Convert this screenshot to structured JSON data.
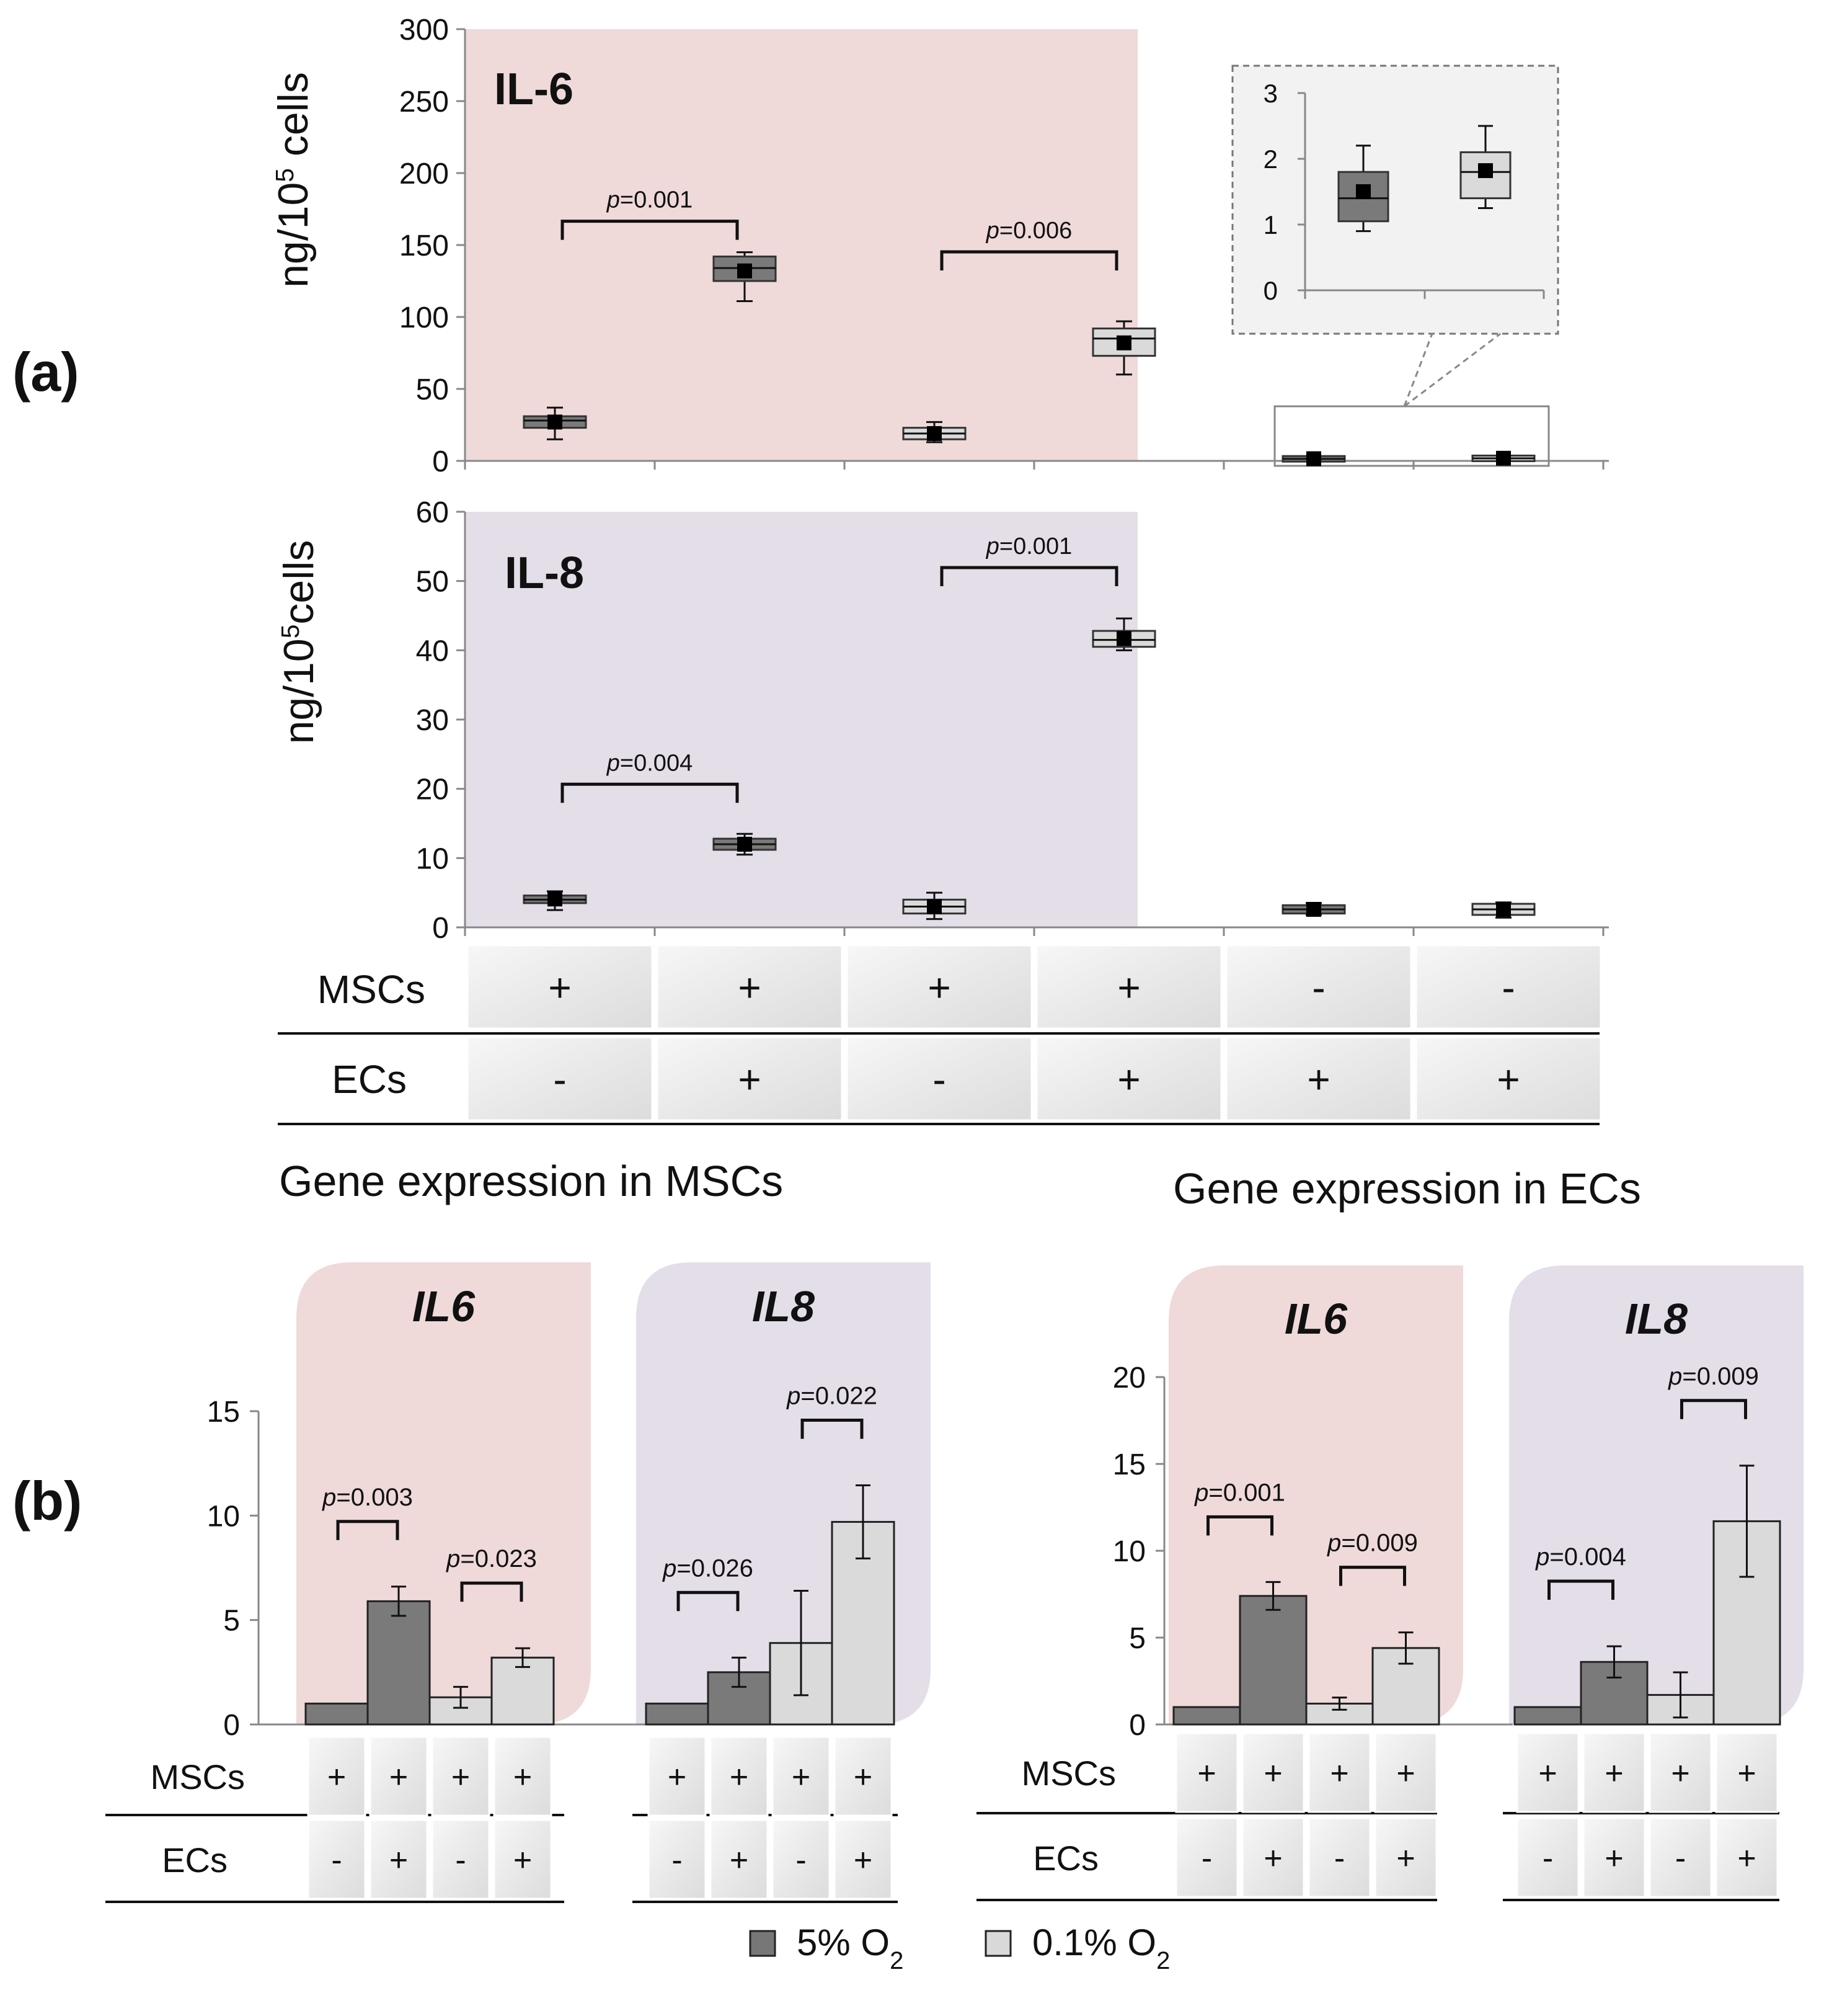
{
  "panel_labels": {
    "a": "(a)",
    "b": "(b)"
  },
  "row_labels": {
    "mscs": "MSCs",
    "ecs": "ECs"
  },
  "section_titles": {
    "mscs": "Gene expression in MSCs",
    "ecs": "Gene expression in ECs"
  },
  "legend": {
    "items": [
      {
        "label": "5% O",
        "sub": "2",
        "color": "#777777"
      },
      {
        "label": "0.1% O",
        "sub": "2",
        "color": "#d9d9d9"
      }
    ]
  },
  "colors": {
    "il6_bg": "#efd9d9",
    "il8_bg": "#e4dee9",
    "dark": "#7a7a7a",
    "light": "#dadada",
    "mark": "#000000"
  },
  "chart_data": [
    {
      "id": "a-il6",
      "type": "box",
      "title": "IL-6",
      "ylabel": "ng/10",
      "ylabel_sup": "5",
      "ylabel_tail": " cells",
      "ylim": [
        0,
        300
      ],
      "yticks": [
        0,
        50,
        100,
        150,
        200,
        250,
        300
      ],
      "groups": [
        {
          "mscs": "+",
          "ecs": "-",
          "shade": "dark",
          "min": 15,
          "q1": 23,
          "median": 28,
          "q3": 31,
          "max": 37,
          "mean": 27
        },
        {
          "mscs": "+",
          "ecs": "+",
          "shade": "dark",
          "min": 111,
          "q1": 125,
          "median": 134,
          "q3": 142,
          "max": 145,
          "mean": 132
        },
        {
          "mscs": "+",
          "ecs": "-",
          "shade": "light",
          "min": 13,
          "q1": 15,
          "median": 19,
          "q3": 23,
          "max": 27,
          "mean": 19
        },
        {
          "mscs": "+",
          "ecs": "+",
          "shade": "light",
          "min": 60,
          "q1": 73,
          "median": 85,
          "q3": 92,
          "max": 97,
          "mean": 82
        },
        {
          "mscs": "-",
          "ecs": "+",
          "shade": "dark",
          "min": 0.9,
          "q1": 1.05,
          "median": 1.4,
          "q3": 1.8,
          "max": 2.2,
          "mean": 1.5
        },
        {
          "mscs": "-",
          "ecs": "+",
          "shade": "light",
          "min": 1.25,
          "q1": 1.4,
          "median": 1.8,
          "q3": 2.1,
          "max": 2.5,
          "mean": 1.82
        }
      ],
      "pvalues": [
        {
          "from": 0,
          "to": 1,
          "text": "p=0.001"
        },
        {
          "from": 2,
          "to": 3,
          "text": "p=0.006"
        }
      ],
      "inset": {
        "ylim": [
          0,
          3
        ],
        "yticks": [
          0,
          1,
          2,
          3
        ],
        "groups": [
          4,
          5
        ]
      }
    },
    {
      "id": "a-il8",
      "type": "box",
      "title": "IL-8",
      "ylabel": "ng/10",
      "ylabel_sup": "5",
      "ylabel_tail": "cells",
      "ylim": [
        0,
        60
      ],
      "yticks": [
        0,
        10,
        20,
        30,
        40,
        50,
        60
      ],
      "groups": [
        {
          "mscs": "+",
          "ecs": "-",
          "shade": "dark",
          "min": 2.5,
          "q1": 3.5,
          "median": 4,
          "q3": 4.6,
          "max": 5.2,
          "mean": 4.1
        },
        {
          "mscs": "+",
          "ecs": "+",
          "shade": "dark",
          "min": 10.5,
          "q1": 11.2,
          "median": 12,
          "q3": 12.8,
          "max": 13.5,
          "mean": 12
        },
        {
          "mscs": "+",
          "ecs": "-",
          "shade": "light",
          "min": 1.2,
          "q1": 2,
          "median": 3,
          "q3": 4,
          "max": 5,
          "mean": 3
        },
        {
          "mscs": "+",
          "ecs": "+",
          "shade": "light",
          "min": 40,
          "q1": 40.5,
          "median": 41.5,
          "q3": 42.8,
          "max": 44.6,
          "mean": 41.7
        },
        {
          "mscs": "-",
          "ecs": "+",
          "shade": "dark",
          "min": 1.8,
          "q1": 2,
          "median": 2.6,
          "q3": 3.2,
          "max": 3.5,
          "mean": 2.6
        },
        {
          "mscs": "-",
          "ecs": "+",
          "shade": "light",
          "min": 1.4,
          "q1": 1.8,
          "median": 2.6,
          "q3": 3.4,
          "max": 3.6,
          "mean": 2.6
        }
      ],
      "pvalues": [
        {
          "from": 0,
          "to": 1,
          "text": "p=0.004"
        },
        {
          "from": 2,
          "to": 3,
          "text": "p=0.001"
        }
      ]
    },
    {
      "id": "b-mscs",
      "type": "bar",
      "ylim": [
        0,
        15
      ],
      "yticks": [
        0,
        5,
        10,
        15
      ],
      "panels": [
        {
          "title": "IL6",
          "bars": [
            {
              "mscs": "+",
              "ecs": "-",
              "shade": "dark",
              "value": 1,
              "err": 0
            },
            {
              "mscs": "+",
              "ecs": "+",
              "shade": "dark",
              "value": 5.9,
              "err": 0.7
            },
            {
              "mscs": "+",
              "ecs": "-",
              "shade": "light",
              "value": 1.3,
              "err": 0.5
            },
            {
              "mscs": "+",
              "ecs": "+",
              "shade": "light",
              "value": 3.2,
              "err": 0.45
            }
          ],
          "pvalues": [
            {
              "from": 0,
              "to": 1,
              "text": "p=0.003"
            },
            {
              "from": 2,
              "to": 3,
              "text": "p=0.023"
            }
          ]
        },
        {
          "title": "IL8",
          "bars": [
            {
              "mscs": "+",
              "ecs": "-",
              "shade": "dark",
              "value": 1,
              "err": 0
            },
            {
              "mscs": "+",
              "ecs": "+",
              "shade": "dark",
              "value": 2.5,
              "err": 0.7
            },
            {
              "mscs": "+",
              "ecs": "-",
              "shade": "light",
              "value": 3.9,
              "err": 2.5
            },
            {
              "mscs": "+",
              "ecs": "+",
              "shade": "light",
              "value": 9.7,
              "err": 1.75
            }
          ],
          "pvalues": [
            {
              "from": 0,
              "to": 1,
              "text": "p=0.026"
            },
            {
              "from": 2,
              "to": 3,
              "text": "p=0.022"
            }
          ]
        }
      ]
    },
    {
      "id": "b-ecs",
      "type": "bar",
      "ylim": [
        0,
        20
      ],
      "yticks": [
        0,
        5,
        10,
        15,
        20
      ],
      "panels": [
        {
          "title": "IL6",
          "bars": [
            {
              "mscs": "+",
              "ecs": "-",
              "shade": "dark",
              "value": 1,
              "err": 0
            },
            {
              "mscs": "+",
              "ecs": "+",
              "shade": "dark",
              "value": 7.4,
              "err": 0.8
            },
            {
              "mscs": "+",
              "ecs": "-",
              "shade": "light",
              "value": 1.2,
              "err": 0.35
            },
            {
              "mscs": "+",
              "ecs": "+",
              "shade": "light",
              "value": 4.4,
              "err": 0.9
            }
          ],
          "pvalues": [
            {
              "from": 0,
              "to": 1,
              "text": "p=0.001"
            },
            {
              "from": 2,
              "to": 3,
              "text": "p=0.009"
            }
          ]
        },
        {
          "title": "IL8",
          "bars": [
            {
              "mscs": "+",
              "ecs": "-",
              "shade": "dark",
              "value": 1,
              "err": 0
            },
            {
              "mscs": "+",
              "ecs": "+",
              "shade": "dark",
              "value": 3.6,
              "err": 0.9
            },
            {
              "mscs": "+",
              "ecs": "-",
              "shade": "light",
              "value": 1.7,
              "err": 1.3
            },
            {
              "mscs": "+",
              "ecs": "+",
              "shade": "light",
              "value": 11.7,
              "err": 3.2
            }
          ],
          "pvalues": [
            {
              "from": 0,
              "to": 1,
              "text": "p=0.004"
            },
            {
              "from": 2,
              "to": 3,
              "text": "p=0.009"
            }
          ]
        }
      ]
    }
  ]
}
